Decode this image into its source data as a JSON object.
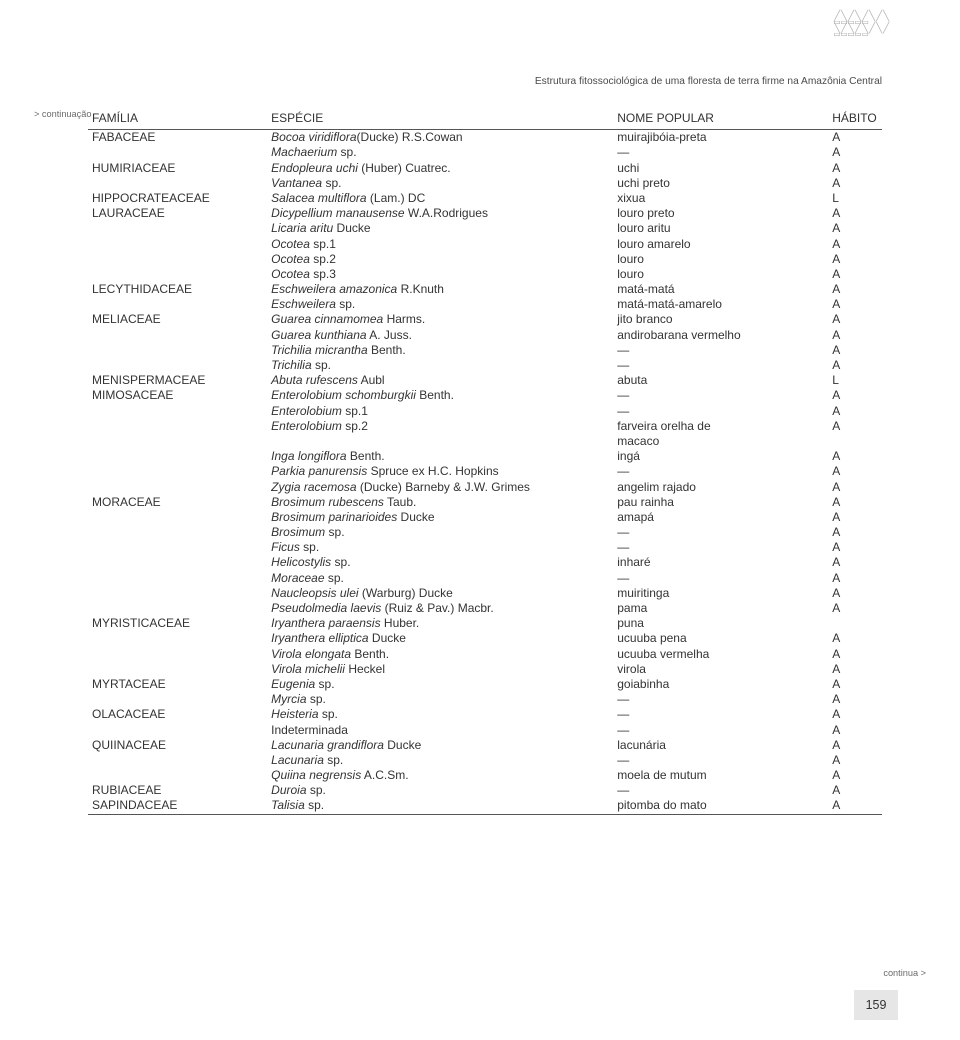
{
  "running_title": "Estrutura fitossociológica de uma floresta de terra firme na Amazônia Central",
  "cont_left": "> continuação",
  "cont_right": "continua >",
  "page_number": "159",
  "headers": {
    "familia": "FAMÍLIA",
    "especie": "ESPÉCIE",
    "popular": "NOME POPULAR",
    "habito": "HÁBITO"
  },
  "rows": [
    {
      "f": "FABACEAE",
      "e": "Bocoa viridiflora",
      "a": "(Ducke) R.S.Cowan",
      "p": "muirajibóia-preta",
      "h": "A"
    },
    {
      "f": "",
      "e": "Machaerium",
      "a": " sp.",
      "p": "—",
      "h": "A"
    },
    {
      "f": "HUMIRIACEAE",
      "e": "Endopleura uchi",
      "a": " (Huber) Cuatrec.",
      "p": "uchi",
      "h": "A"
    },
    {
      "f": "",
      "e": "Vantanea",
      "a": " sp.",
      "p": "uchi preto",
      "h": "A"
    },
    {
      "f": "HIPPOCRATEACEAE",
      "e": "Salacea multiflora",
      "a": " (Lam.) DC",
      "p": "xixua",
      "h": "L"
    },
    {
      "f": "LAURACEAE",
      "e": "Dicypellium manausense",
      "a": " W.A.Rodrigues",
      "p": "louro preto",
      "h": "A"
    },
    {
      "f": "",
      "e": "Licaria aritu",
      "a": " Ducke",
      "p": "louro aritu",
      "h": "A"
    },
    {
      "f": "",
      "e": "Ocotea",
      "a": " sp.1",
      "p": "louro amarelo",
      "h": "A"
    },
    {
      "f": "",
      "e": "Ocotea",
      "a": " sp.2",
      "p": "louro",
      "h": "A"
    },
    {
      "f": "",
      "e": "Ocotea",
      "a": " sp.3",
      "p": "louro",
      "h": "A"
    },
    {
      "f": "LECYTHIDACEAE",
      "e": "Eschweilera amazonica",
      "a": " R.Knuth",
      "p": "matá-matá",
      "h": "A"
    },
    {
      "f": "",
      "e": "Eschweilera",
      "a": " sp.",
      "p": "matá-matá-amarelo",
      "h": "A"
    },
    {
      "f": "MELIACEAE",
      "e": "Guarea cinnamomea",
      "a": " Harms.",
      "p": "jito branco",
      "h": "A"
    },
    {
      "f": "",
      "e": "Guarea kunthiana",
      "a": " A. Juss.",
      "p": "andirobarana vermelho",
      "h": "A"
    },
    {
      "f": "",
      "e": "Trichilia micrantha",
      "a": " Benth.",
      "p": "—",
      "h": "A"
    },
    {
      "f": "",
      "e": "Trichilia",
      "a": " sp.",
      "p": "—",
      "h": "A"
    },
    {
      "f": "MENISPERMACEAE",
      "e": "Abuta rufescens",
      "a": " Aubl",
      "p": "abuta",
      "h": "L"
    },
    {
      "f": "MIMOSACEAE",
      "e": "Enterolobium schomburgkii",
      "a": " Benth.",
      "p": "—",
      "h": "A"
    },
    {
      "f": "",
      "e": "Enterolobium",
      "a": " sp.1",
      "p": "—",
      "h": "A"
    },
    {
      "f": "",
      "e": "Enterolobium",
      "a": " sp.2",
      "p": "farveira orelha de",
      "h": "A"
    },
    {
      "f": "",
      "e": "",
      "a": "",
      "p": "macaco",
      "h": ""
    },
    {
      "f": "",
      "e": "Inga longiflora",
      "a": " Benth.",
      "p": "ingá",
      "h": "A"
    },
    {
      "f": "",
      "e": "Parkia panurensis",
      "a": " Spruce ex H.C. Hopkins",
      "p": "—",
      "h": "A"
    },
    {
      "f": "",
      "e": "Zygia racemosa",
      "a": " (Ducke) Barneby & J.W. Grimes",
      "p": "angelim rajado",
      "h": "A"
    },
    {
      "f": "MORACEAE",
      "e": "Brosimum rubescens",
      "a": " Taub.",
      "p": "pau rainha",
      "h": "A"
    },
    {
      "f": "",
      "e": "Brosimum parinarioides",
      "a": " Ducke",
      "p": "amapá",
      "h": "A"
    },
    {
      "f": "",
      "e": "Brosimum",
      "a": " sp.",
      "p": "—",
      "h": "A"
    },
    {
      "f": "",
      "e": "Ficus",
      "a": " sp.",
      "p": "—",
      "h": "A"
    },
    {
      "f": "",
      "e": "Helicostylis",
      "a": " sp.",
      "p": "inharé",
      "h": "A"
    },
    {
      "f": "",
      "e": "Moraceae",
      "a": " sp.",
      "p": "—",
      "h": "A"
    },
    {
      "f": "",
      "e": "Naucleopsis ulei",
      "a": " (Warburg) Ducke",
      "p": "muiritinga",
      "h": "A"
    },
    {
      "f": "",
      "e": "Pseudolmedia laevis",
      "a": " (Ruiz & Pav.) Macbr.",
      "p": "pama",
      "h": "A"
    },
    {
      "f": "MYRISTICACEAE",
      "e": "Iryanthera paraensis",
      "a": " Huber.",
      "p": "puna",
      "h": ""
    },
    {
      "f": "",
      "e": "Iryanthera elliptica",
      "a": " Ducke",
      "p": "ucuuba pena",
      "h": "A"
    },
    {
      "f": "",
      "e": "Virola elongata",
      "a": " Benth.",
      "p": "ucuuba vermelha",
      "h": "A"
    },
    {
      "f": "",
      "e": "Virola michelii",
      "a": " Heckel",
      "p": "virola",
      "h": "A"
    },
    {
      "f": "MYRTACEAE",
      "e": "Eugenia",
      "a": " sp.",
      "p": "goiabinha",
      "h": "A"
    },
    {
      "f": "",
      "e": "Myrcia",
      "a": " sp.",
      "p": "—",
      "h": "A"
    },
    {
      "f": "OLACACEAE",
      "e": "Heisteria",
      "a": " sp.",
      "p": "—",
      "h": "A"
    },
    {
      "f": "",
      "e": "",
      "a": "Indeterminada",
      "p": "—",
      "h": "A",
      "noital": true
    },
    {
      "f": "QUIINACEAE",
      "e": "Lacunaria grandiflora",
      "a": " Ducke",
      "p": "lacunária",
      "h": "A"
    },
    {
      "f": "",
      "e": "Lacunaria",
      "a": " sp.",
      "p": "—",
      "h": "A"
    },
    {
      "f": "",
      "e": "Quiina negrensis",
      "a": " A.C.Sm.",
      "p": "moela de mutum",
      "h": "A"
    },
    {
      "f": "RUBIACEAE",
      "e": "Duroia",
      "a": " sp.",
      "p": "—",
      "h": "A"
    },
    {
      "f": "SAPINDACEAE",
      "e": "Talisia",
      "a": " sp.",
      "p": "pitomba do mato",
      "h": "A",
      "last": true
    }
  ],
  "colors": {
    "text": "#333333",
    "rule": "#555555",
    "page_box_bg": "#e6e6e6",
    "light": "#6b6b6b"
  },
  "fonts": {
    "body_pt": 12,
    "header_pt": 10.2,
    "small_pt": 9.2
  }
}
